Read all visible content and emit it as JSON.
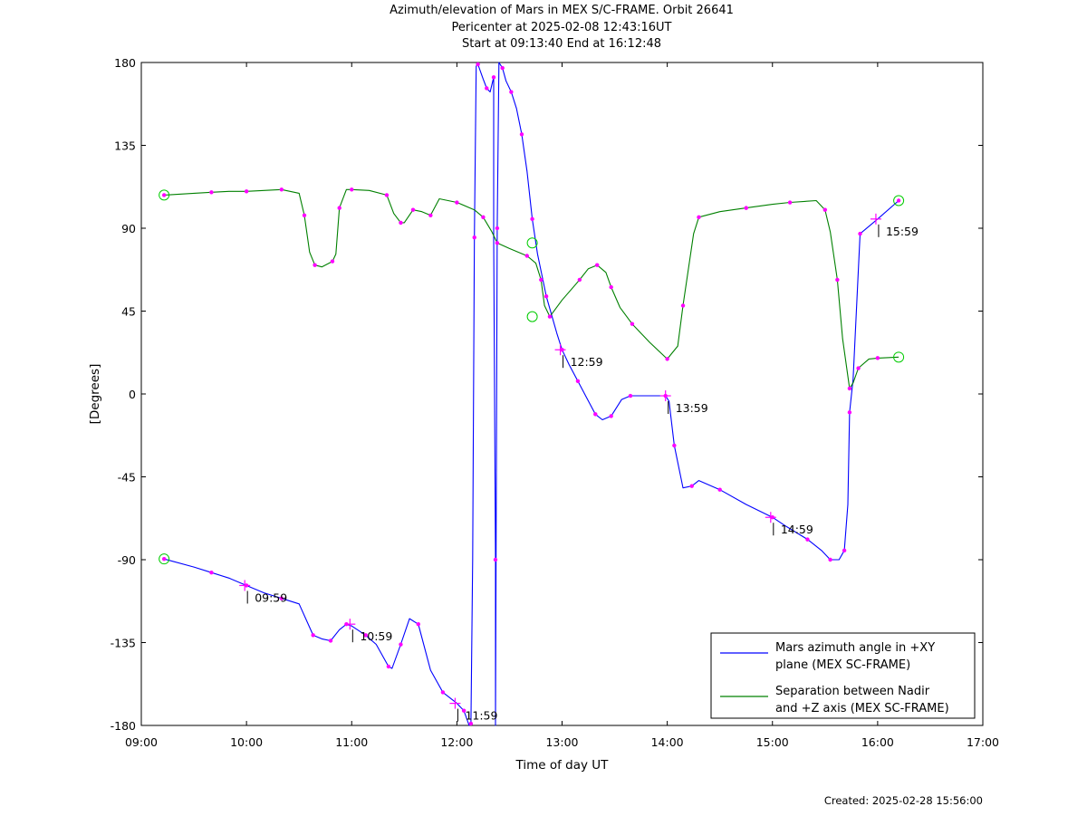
{
  "chart_data": {
    "type": "line",
    "title": "Azimuth/elevation of Mars in MEX S/C-FRAME.  Orbit 26641",
    "subtitle1": "Pericenter at 2025-02-08 12:43:16UT",
    "subtitle2": "Start at 09:13:40 End at 16:12:48",
    "xlabel": "Time of day UT",
    "ylabel": "[Degrees]",
    "xlim": [
      "09:00",
      "17:00"
    ],
    "ylim": [
      -180,
      180
    ],
    "xticks": [
      "09:00",
      "10:00",
      "11:00",
      "12:00",
      "13:00",
      "14:00",
      "15:00",
      "16:00",
      "17:00"
    ],
    "yticks": [
      "180",
      "135",
      "90",
      "45",
      "0",
      "-45",
      "-90",
      "-135",
      "-180"
    ],
    "legend_position": "bottom-right",
    "series": [
      {
        "name": "Mars azimuth angle in +XY plane (MEX SC-FRAME)",
        "color": "#0000ff",
        "points": [
          [
            "09:13",
            -89.6
          ],
          [
            "09:30",
            -94
          ],
          [
            "09:40",
            -97
          ],
          [
            "09:50",
            -100
          ],
          [
            "10:00",
            -104
          ],
          [
            "10:10",
            -108
          ],
          [
            "10:20",
            -111
          ],
          [
            "10:30",
            -114
          ],
          [
            "10:38",
            -131
          ],
          [
            "10:43",
            -133
          ],
          [
            "10:48",
            -134
          ],
          [
            "10:53",
            -128
          ],
          [
            "10:57",
            -125
          ],
          [
            "11:00",
            -126
          ],
          [
            "11:08",
            -131
          ],
          [
            "11:14",
            -136
          ],
          [
            "11:21",
            -148
          ],
          [
            "11:23",
            -149
          ],
          [
            "11:28",
            -136
          ],
          [
            "11:33",
            -122
          ],
          [
            "11:38",
            -125
          ],
          [
            "11:45",
            -150
          ],
          [
            "11:52",
            -162
          ],
          [
            "12:00",
            -168
          ],
          [
            "12:04",
            -172
          ],
          [
            "12:07",
            -180
          ],
          [
            "12:08",
            -179
          ],
          [
            "12:09",
            -90
          ],
          [
            "12:10",
            85
          ],
          [
            "12:11",
            178
          ],
          [
            "12:12",
            179
          ],
          [
            "12:15",
            171
          ],
          [
            "12:17",
            166
          ],
          [
            "12:19",
            164
          ],
          [
            "12:21",
            172
          ],
          [
            "12:21",
            85
          ],
          [
            "12:22",
            -90
          ],
          [
            "12:22",
            -180
          ],
          [
            "12:23",
            90
          ],
          [
            "12:24",
            180
          ],
          [
            "12:26",
            177
          ],
          [
            "12:28",
            170
          ],
          [
            "12:31",
            164
          ],
          [
            "12:34",
            155
          ],
          [
            "12:37",
            141
          ],
          [
            "12:40",
            121
          ],
          [
            "12:43",
            95
          ],
          [
            "12:46",
            76
          ],
          [
            "12:51",
            53
          ],
          [
            "12:57",
            33
          ],
          [
            "13:00",
            24
          ],
          [
            "13:04",
            16
          ],
          [
            "13:09",
            7
          ],
          [
            "13:14",
            -2
          ],
          [
            "13:19",
            -11
          ],
          [
            "13:23",
            -14
          ],
          [
            "13:28",
            -12
          ],
          [
            "13:34",
            -3
          ],
          [
            "13:39",
            -1
          ],
          [
            "13:50",
            -1
          ],
          [
            "13:59",
            -1
          ],
          [
            "14:01",
            -4
          ],
          [
            "14:04",
            -28
          ],
          [
            "14:09",
            -51
          ],
          [
            "14:14",
            -50
          ],
          [
            "14:18",
            -47
          ],
          [
            "14:30",
            -52
          ],
          [
            "14:45",
            -60
          ],
          [
            "15:00",
            -67
          ],
          [
            "15:08",
            -72
          ],
          [
            "15:20",
            -79
          ],
          [
            "15:28",
            -85
          ],
          [
            "15:33",
            -90
          ],
          [
            "15:38",
            -90
          ],
          [
            "15:41",
            -85
          ],
          [
            "15:43",
            -60
          ],
          [
            "15:44",
            -10
          ],
          [
            "15:46",
            8
          ],
          [
            "15:50",
            87
          ],
          [
            "16:00",
            95
          ],
          [
            "16:12",
            105
          ]
        ]
      },
      {
        "name": "Separation between Nadir and +Z axis (MEX SC-FRAME)",
        "color": "#008000",
        "points": [
          [
            "09:13",
            108
          ],
          [
            "09:30",
            109
          ],
          [
            "09:40",
            109.5
          ],
          [
            "09:50",
            110
          ],
          [
            "10:00",
            110
          ],
          [
            "10:10",
            110.5
          ],
          [
            "10:20",
            111
          ],
          [
            "10:30",
            109
          ],
          [
            "10:33",
            97
          ],
          [
            "10:36",
            77
          ],
          [
            "10:39",
            70
          ],
          [
            "10:43",
            69
          ],
          [
            "10:49",
            72
          ],
          [
            "10:51",
            76
          ],
          [
            "10:53",
            101
          ],
          [
            "10:57",
            111
          ],
          [
            "11:00",
            111
          ],
          [
            "11:10",
            110.5
          ],
          [
            "11:20",
            108
          ],
          [
            "11:24",
            98
          ],
          [
            "11:28",
            93
          ],
          [
            "11:30",
            93
          ],
          [
            "11:35",
            100
          ],
          [
            "11:40",
            99
          ],
          [
            "11:45",
            97
          ],
          [
            "11:50",
            106
          ],
          [
            "12:00",
            104
          ],
          [
            "12:10",
            100
          ],
          [
            "12:15",
            96
          ],
          [
            "12:20",
            88
          ],
          [
            "12:23",
            82
          ],
          [
            "12:30",
            79
          ],
          [
            "12:40",
            75
          ],
          [
            "12:45",
            71
          ],
          [
            "12:48",
            62
          ],
          [
            "12:50",
            48
          ],
          [
            "12:53",
            42
          ],
          [
            "13:00",
            51
          ],
          [
            "13:10",
            62
          ],
          [
            "13:15",
            68
          ],
          [
            "13:20",
            70
          ],
          [
            "13:25",
            66
          ],
          [
            "13:28",
            58
          ],
          [
            "13:33",
            47
          ],
          [
            "13:40",
            38
          ],
          [
            "13:50",
            28
          ],
          [
            "14:00",
            19
          ],
          [
            "14:06",
            26
          ],
          [
            "14:09",
            48
          ],
          [
            "14:15",
            87
          ],
          [
            "14:18",
            96
          ],
          [
            "14:30",
            99
          ],
          [
            "14:45",
            101
          ],
          [
            "15:00",
            103
          ],
          [
            "15:10",
            104
          ],
          [
            "15:25",
            105
          ],
          [
            "15:30",
            100
          ],
          [
            "15:33",
            88
          ],
          [
            "15:37",
            62
          ],
          [
            "15:40",
            30
          ],
          [
            "15:44",
            3
          ],
          [
            "15:46",
            6
          ],
          [
            "15:49",
            14
          ],
          [
            "15:55",
            19
          ],
          [
            "16:00",
            19.5
          ],
          [
            "16:12",
            20
          ]
        ]
      }
    ],
    "annotations": [
      {
        "label": "09:59",
        "t": "09:59",
        "y": -104
      },
      {
        "label": "10:59",
        "t": "10:59",
        "y": -125
      },
      {
        "label": "11:59",
        "t": "11:59",
        "y": -168
      },
      {
        "label": "12:59",
        "t": "12:59",
        "y": 24
      },
      {
        "label": "13:59",
        "t": "13:59",
        "y": -1
      },
      {
        "label": "14:59",
        "t": "14:59",
        "y": -67
      },
      {
        "label": "15:59",
        "t": "15:59",
        "y": 95
      }
    ],
    "circles": [
      {
        "t": "09:13",
        "y": -89.6
      },
      {
        "t": "09:13",
        "y": 108
      },
      {
        "t": "12:43",
        "y": 82
      },
      {
        "t": "12:43",
        "y": 42
      },
      {
        "t": "16:12",
        "y": 105
      },
      {
        "t": "16:12",
        "y": 20
      }
    ]
  },
  "footer": "Created: 2025-02-28 15:56:00"
}
